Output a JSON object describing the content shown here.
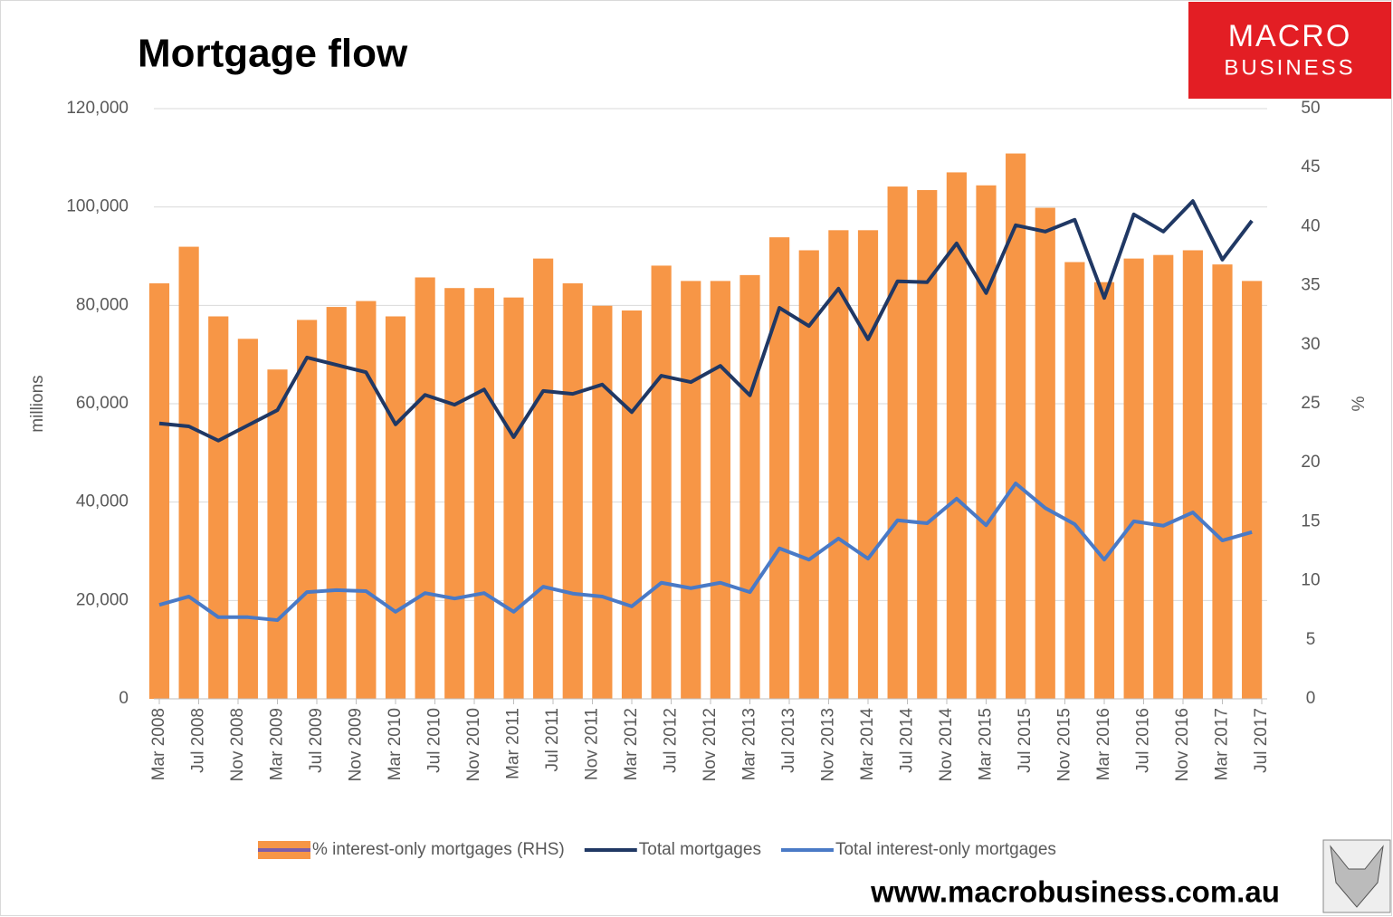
{
  "title": "Mortgage flow",
  "logo": {
    "line1": "MACRO",
    "line2": "BUSINESS"
  },
  "footer": "www.macrobusiness.com.au",
  "chart_data": {
    "type": "combo",
    "ylabel": "millions",
    "y2label": "%",
    "x": [
      "2008-03",
      "2008-06",
      "2008-09",
      "2008-12",
      "2009-03",
      "2009-06",
      "2009-09",
      "2009-12",
      "2010-03",
      "2010-06",
      "2010-09",
      "2010-12",
      "2011-03",
      "2011-06",
      "2011-09",
      "2011-12",
      "2012-03",
      "2012-06",
      "2012-09",
      "2012-12",
      "2013-03",
      "2013-06",
      "2013-09",
      "2013-12",
      "2014-03",
      "2014-06",
      "2014-09",
      "2014-12",
      "2015-03",
      "2015-06",
      "2015-09",
      "2015-12",
      "2016-03",
      "2016-06",
      "2016-09",
      "2016-12",
      "2017-03",
      "2017-06"
    ],
    "xlim": [
      "2008-03",
      "2017-07"
    ],
    "xticks": [
      {
        "value": "2008-03",
        "label": "Mar 2008"
      },
      {
        "value": "2008-07",
        "label": "Jul 2008"
      },
      {
        "value": "2008-11",
        "label": "Nov 2008"
      },
      {
        "value": "2009-03",
        "label": "Mar 2009"
      },
      {
        "value": "2009-07",
        "label": "Jul 2009"
      },
      {
        "value": "2009-11",
        "label": "Nov 2009"
      },
      {
        "value": "2010-03",
        "label": "Mar 2010"
      },
      {
        "value": "2010-07",
        "label": "Jul 2010"
      },
      {
        "value": "2010-11",
        "label": "Nov 2010"
      },
      {
        "value": "2011-03",
        "label": "Mar 2011"
      },
      {
        "value": "2011-07",
        "label": "Jul 2011"
      },
      {
        "value": "2011-11",
        "label": "Nov 2011"
      },
      {
        "value": "2012-03",
        "label": "Mar 2012"
      },
      {
        "value": "2012-07",
        "label": "Jul 2012"
      },
      {
        "value": "2012-11",
        "label": "Nov 2012"
      },
      {
        "value": "2013-03",
        "label": "Mar 2013"
      },
      {
        "value": "2013-07",
        "label": "Jul 2013"
      },
      {
        "value": "2013-11",
        "label": "Nov 2013"
      },
      {
        "value": "2014-03",
        "label": "Mar 2014"
      },
      {
        "value": "2014-07",
        "label": "Jul 2014"
      },
      {
        "value": "2014-11",
        "label": "Nov 2014"
      },
      {
        "value": "2015-03",
        "label": "Mar 2015"
      },
      {
        "value": "2015-07",
        "label": "Jul 2015"
      },
      {
        "value": "2015-11",
        "label": "Nov 2015"
      },
      {
        "value": "2016-03",
        "label": "Mar 2016"
      },
      {
        "value": "2016-07",
        "label": "Jul 2016"
      },
      {
        "value": "2016-11",
        "label": "Nov 2016"
      },
      {
        "value": "2017-03",
        "label": "Mar 2017"
      },
      {
        "value": "2017-07",
        "label": "Jul 2017"
      }
    ],
    "ylim": [
      0,
      120000
    ],
    "yticks": [
      0,
      {
        "value": 20000,
        "label": "20,000"
      },
      {
        "value": 40000,
        "label": "40,000"
      },
      {
        "value": 60000,
        "label": "60,000"
      },
      {
        "value": 80000,
        "label": "80,000"
      },
      {
        "value": 100000,
        "label": "100,000"
      },
      {
        "value": 120000,
        "label": "120,000"
      }
    ],
    "y2lim": [
      0,
      50
    ],
    "y2ticks": [
      0,
      5,
      10,
      15,
      20,
      25,
      30,
      35,
      40,
      45,
      50
    ],
    "grid": true,
    "legend": "bottom",
    "series": [
      {
        "name": "% interest-only mortgages (RHS)",
        "type": "bar",
        "axis": "y2",
        "color": "#f79646",
        "values": [
          35.2,
          38.3,
          32.4,
          30.5,
          27.9,
          32.1,
          33.2,
          33.7,
          32.4,
          35.7,
          34.8,
          34.8,
          34.0,
          37.3,
          35.2,
          33.3,
          32.9,
          36.7,
          35.4,
          35.4,
          35.9,
          39.1,
          38.0,
          39.7,
          39.7,
          43.4,
          43.1,
          44.6,
          43.5,
          46.2,
          41.6,
          37.0,
          35.3,
          37.3,
          37.6,
          38.0,
          36.8,
          35.4
        ]
      },
      {
        "name": "Total mortgages",
        "type": "line",
        "color": "#203864",
        "values": [
          56000,
          55400,
          52500,
          55600,
          58700,
          69400,
          67900,
          66400,
          55800,
          61800,
          59800,
          62900,
          53200,
          62600,
          62000,
          63900,
          58300,
          65700,
          64400,
          67700,
          61700,
          79500,
          75800,
          83400,
          73100,
          84900,
          84700,
          92600,
          82500,
          96300,
          95000,
          97400,
          81500,
          98500,
          95000,
          101200,
          89300,
          97200
        ]
      },
      {
        "name": "Total interest-only mortgages",
        "type": "line",
        "color": "#4a7ac6",
        "values": [
          19100,
          20800,
          16600,
          16600,
          16000,
          21700,
          22100,
          21900,
          17700,
          21500,
          20400,
          21500,
          17700,
          22800,
          21400,
          20800,
          18800,
          23600,
          22500,
          23600,
          21700,
          30600,
          28300,
          32600,
          28500,
          36300,
          35700,
          40700,
          35300,
          43800,
          38800,
          35500,
          28300,
          36100,
          35200,
          37900,
          32200,
          33900
        ]
      }
    ]
  }
}
